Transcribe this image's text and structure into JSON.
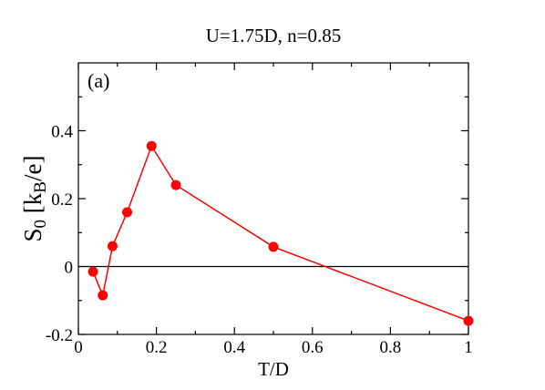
{
  "chart_data": {
    "type": "line",
    "title": "U=1.75D, n=0.85",
    "panel_label": "(a)",
    "xlabel": "T/D",
    "ylabel": {
      "main": "S",
      "sub0": "0",
      "bracket_open": " [k",
      "sub_b": "B",
      "bracket_close": "/e]"
    },
    "xlim": [
      0,
      1
    ],
    "ylim": [
      -0.2,
      0.6
    ],
    "x_ticks": [
      {
        "value": 0,
        "label": "0"
      },
      {
        "value": 0.2,
        "label": "0.2"
      },
      {
        "value": 0.4,
        "label": "0.4"
      },
      {
        "value": 0.6,
        "label": "0.6"
      },
      {
        "value": 0.8,
        "label": "0.8"
      },
      {
        "value": 1,
        "label": "1"
      }
    ],
    "y_ticks": [
      {
        "value": -0.2,
        "label": "-0.2"
      },
      {
        "value": 0,
        "label": "0"
      },
      {
        "value": 0.2,
        "label": "0.2"
      },
      {
        "value": 0.4,
        "label": "0.4"
      }
    ],
    "grid": false,
    "zero_line": true,
    "series": [
      {
        "color": "#ff0000",
        "x": [
          0.0375,
          0.0625,
          0.0875,
          0.125,
          0.1875,
          0.25,
          0.5,
          1.0
        ],
        "y": [
          -0.015,
          -0.085,
          0.06,
          0.16,
          0.355,
          0.24,
          0.058,
          -0.16
        ]
      }
    ]
  }
}
